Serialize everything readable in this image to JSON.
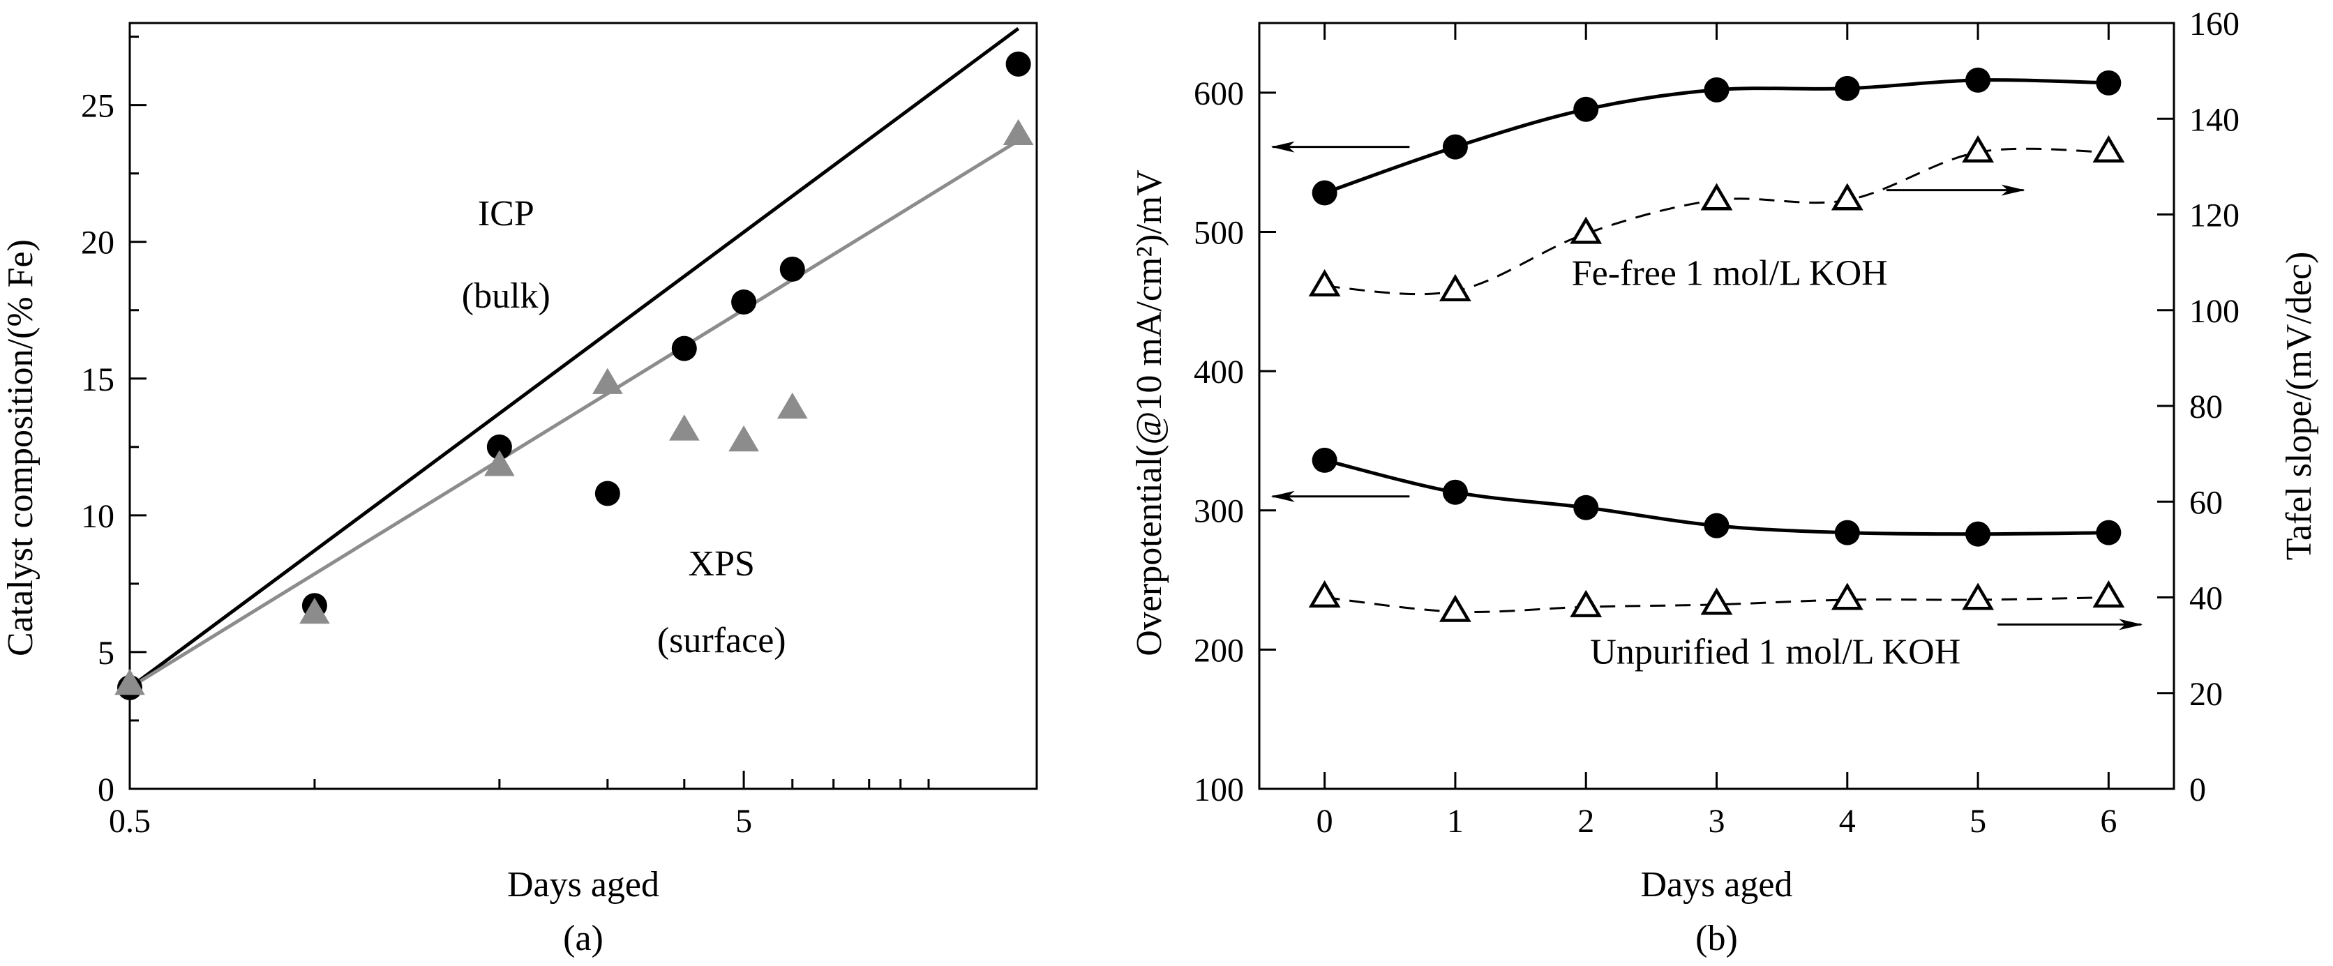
{
  "chart_data": [
    {
      "type": "scatter",
      "panel_label": "(a)",
      "xlabel": "Days aged",
      "ylabel": "Catalyst composition/(% Fe)",
      "x_scale": "log",
      "xlim": [
        0.5,
        15
      ],
      "ylim": [
        0,
        28
      ],
      "x_tick_labels": [
        {
          "value": 0.5,
          "label": "0.5"
        },
        {
          "value": 5,
          "label": "5"
        }
      ],
      "x_minor_ticks": [
        1,
        2,
        3,
        4,
        6,
        7,
        8,
        9,
        10
      ],
      "y_ticks": [
        0,
        5,
        10,
        15,
        20,
        25
      ],
      "annotations": [
        {
          "text": "ICP",
          "x": 2.05,
          "y": 20.6
        },
        {
          "text": "(bulk)",
          "x": 2.05,
          "y": 17.6
        },
        {
          "text": "XPS",
          "x": 4.6,
          "y": 7.8
        },
        {
          "text": "(surface)",
          "x": 4.6,
          "y": 5.0
        }
      ],
      "series": [
        {
          "marker": "circle",
          "color": "#000000",
          "points": [
            [
              0.5,
              3.7
            ],
            [
              1.0,
              6.7
            ],
            [
              2.0,
              12.5
            ],
            [
              3.0,
              10.8
            ],
            [
              4.0,
              16.1
            ],
            [
              5.0,
              17.8
            ],
            [
              6.0,
              19.0
            ],
            [
              14.0,
              26.5
            ]
          ],
          "fit": [
            [
              0.5,
              3.7
            ],
            [
              14.0,
              27.8
            ]
          ]
        },
        {
          "marker": "triangle",
          "color": "#8c8c8c",
          "points": [
            [
              0.5,
              3.8
            ],
            [
              1.0,
              6.4
            ],
            [
              2.0,
              11.8
            ],
            [
              3.0,
              14.8
            ],
            [
              4.0,
              13.1
            ],
            [
              5.0,
              12.7
            ],
            [
              6.0,
              13.9
            ],
            [
              14.0,
              23.9
            ]
          ],
          "fit": [
            [
              0.5,
              3.7
            ],
            [
              14.0,
              23.7
            ]
          ]
        }
      ]
    },
    {
      "type": "line",
      "panel_label": "(b)",
      "xlabel": "Days aged",
      "ylabel_left": "Overpotential(@10 mA/cm²)/mV",
      "ylabel_right": "Tafel slope/(mV/dec)",
      "xlim": [
        -0.5,
        6.5
      ],
      "ylim_left": [
        100,
        650
      ],
      "ylim_right": [
        0,
        160
      ],
      "x_ticks": [
        0,
        1,
        2,
        3,
        4,
        5,
        6
      ],
      "y_ticks_left": [
        100,
        200,
        300,
        400,
        500,
        600
      ],
      "y_ticks_right": [
        0,
        20,
        40,
        60,
        80,
        100,
        120,
        140,
        160
      ],
      "annotations": [
        {
          "text": "Fe-free 1 mol/L KOH",
          "x": 3.1,
          "y": 462
        },
        {
          "text": "Unpurified 1 mol/L KOH",
          "x": 3.45,
          "y": 190
        }
      ],
      "arrows": [
        {
          "from": [
            0.65,
            561
          ],
          "to": [
            -0.4,
            561
          ],
          "axis": "left"
        },
        {
          "from": [
            0.65,
            310
          ],
          "to": [
            -0.4,
            310
          ],
          "axis": "left"
        },
        {
          "from": [
            4.3,
            530
          ],
          "to": [
            5.35,
            530
          ],
          "axis": "left"
        },
        {
          "from": [
            5.15,
            218
          ],
          "to": [
            6.25,
            218
          ],
          "axis": "left"
        }
      ],
      "series": [
        {
          "axis": "left",
          "marker": "circle",
          "style": "solid",
          "x": [
            0,
            1,
            2,
            3,
            4,
            5,
            6
          ],
          "y": [
            528,
            561,
            588,
            602,
            603,
            609,
            607
          ]
        },
        {
          "axis": "right",
          "marker": "open-triangle",
          "style": "dashed",
          "x": [
            0,
            1,
            2,
            3,
            4,
            5,
            6
          ],
          "y": [
            105,
            104,
            116,
            123,
            123,
            133,
            133
          ]
        },
        {
          "axis": "left",
          "marker": "circle",
          "style": "solid",
          "x": [
            0,
            1,
            2,
            3,
            4,
            5,
            6
          ],
          "y": [
            336,
            313,
            302,
            289,
            284,
            283,
            284
          ]
        },
        {
          "axis": "right",
          "marker": "open-triangle",
          "style": "dashed",
          "x": [
            0,
            1,
            2,
            3,
            4,
            5,
            6
          ],
          "y": [
            40,
            37,
            38,
            38.5,
            39.5,
            39.5,
            40
          ]
        }
      ]
    }
  ]
}
